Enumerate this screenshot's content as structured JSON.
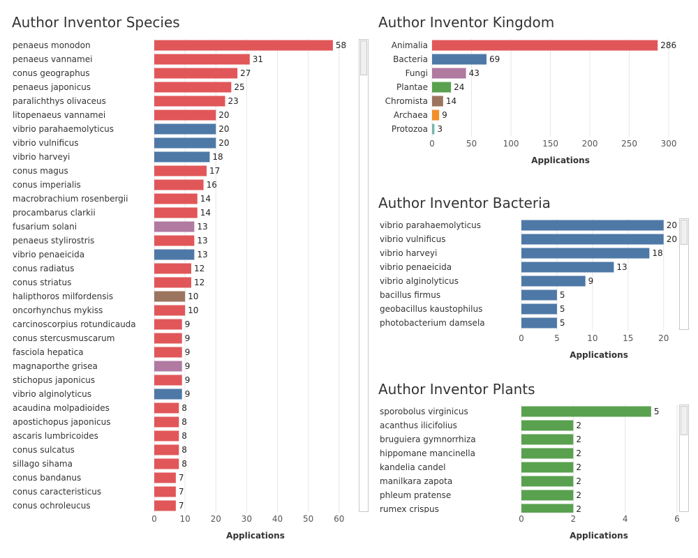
{
  "colors": {
    "animalia": "#e15759",
    "bacteria": "#4e79a7",
    "fungi": "#b07aa1",
    "plantae": "#59a14f",
    "chromista": "#9c755f",
    "archaea": "#f28e2b",
    "protozoa": "#76b7b2",
    "grid": "#e6e6e6",
    "axis_text": "#555555",
    "label_text": "#333333"
  },
  "chart_data": [
    {
      "id": "species",
      "type": "bar",
      "orientation": "horizontal",
      "title": "Author Inventor Species",
      "xlabel": "Applications",
      "xlim": [
        0,
        63
      ],
      "xticks": [
        0,
        10,
        20,
        30,
        40,
        50,
        60
      ],
      "grid": true,
      "categories": [
        "penaeus monodon",
        "penaeus vannamei",
        "conus geographus",
        "penaeus japonicus",
        "paralichthys olivaceus",
        "litopenaeus vannamei",
        "vibrio parahaemolyticus",
        "vibrio vulnificus",
        "vibrio harveyi",
        "conus magus",
        "conus imperialis",
        "macrobrachium rosenbergii",
        "procambarus clarkii",
        "fusarium solani",
        "penaeus stylirostris",
        "vibrio penaeicida",
        "conus radiatus",
        "conus striatus",
        "halipthoros milfordensis",
        "oncorhynchus mykiss",
        "carcinoscorpius rotundicauda",
        "conus stercusmuscarum",
        "fasciola hepatica",
        "magnaporthe grisea",
        "stichopus japonicus",
        "vibrio alginolyticus",
        "acaudina molpadioides",
        "apostichopus japonicus",
        "ascaris lumbricoides",
        "conus sulcatus",
        "sillago sihama",
        "conus bandanus",
        "conus caracteristicus",
        "conus ochroleucus"
      ],
      "values": [
        58,
        31,
        27,
        25,
        23,
        20,
        20,
        20,
        18,
        17,
        16,
        14,
        14,
        13,
        13,
        13,
        12,
        12,
        10,
        10,
        9,
        9,
        9,
        9,
        9,
        9,
        8,
        8,
        8,
        8,
        8,
        7,
        7,
        7
      ],
      "kingdoms": [
        "animalia",
        "animalia",
        "animalia",
        "animalia",
        "animalia",
        "animalia",
        "bacteria",
        "bacteria",
        "bacteria",
        "animalia",
        "animalia",
        "animalia",
        "animalia",
        "fungi",
        "animalia",
        "bacteria",
        "animalia",
        "animalia",
        "chromista",
        "animalia",
        "animalia",
        "animalia",
        "animalia",
        "fungi",
        "animalia",
        "bacteria",
        "animalia",
        "animalia",
        "animalia",
        "animalia",
        "animalia",
        "animalia",
        "animalia",
        "animalia"
      ]
    },
    {
      "id": "kingdom",
      "type": "bar",
      "orientation": "horizontal",
      "title": "Author Inventor Kingdom",
      "xlabel": "Applications",
      "xlim": [
        0,
        315
      ],
      "xticks": [
        0,
        50,
        100,
        150,
        200,
        250,
        300
      ],
      "grid": true,
      "categories": [
        "Animalia",
        "Bacteria",
        "Fungi",
        "Plantae",
        "Chromista",
        "Archaea",
        "Protozoa"
      ],
      "values": [
        286,
        69,
        43,
        24,
        14,
        9,
        3
      ],
      "kingdoms": [
        "animalia",
        "bacteria",
        "fungi",
        "plantae",
        "chromista",
        "archaea",
        "protozoa"
      ]
    },
    {
      "id": "bacteria",
      "type": "bar",
      "orientation": "horizontal",
      "title": "Author Inventor Bacteria",
      "xlabel": "Applications",
      "xlim": [
        0,
        21.5
      ],
      "xticks": [
        0,
        5,
        10,
        15,
        20
      ],
      "grid": true,
      "categories": [
        "vibrio parahaemolyticus",
        "vibrio vulnificus",
        "vibrio harveyi",
        "vibrio penaeicida",
        "vibrio alginolyticus",
        "bacillus firmus",
        "geobacillus kaustophilus",
        "photobacterium damsela"
      ],
      "values": [
        20,
        20,
        18,
        13,
        9,
        5,
        5,
        5
      ],
      "kingdoms": [
        "bacteria",
        "bacteria",
        "bacteria",
        "bacteria",
        "bacteria",
        "bacteria",
        "bacteria",
        "bacteria"
      ]
    },
    {
      "id": "plants",
      "type": "bar",
      "orientation": "horizontal",
      "title": "Author Inventor Plants",
      "xlabel": "Applications",
      "xlim": [
        0,
        6
      ],
      "xticks": [
        0,
        2,
        4,
        6
      ],
      "grid": true,
      "categories": [
        "sporobolus virginicus",
        "acanthus ilicifolius",
        "bruguiera gymnorrhiza",
        "hippomane mancinella",
        "kandelia candel",
        "manilkara zapota",
        "phleum pratense",
        "rumex crispus"
      ],
      "values": [
        5,
        2,
        2,
        2,
        2,
        2,
        2,
        2
      ],
      "kingdoms": [
        "plantae",
        "plantae",
        "plantae",
        "plantae",
        "plantae",
        "plantae",
        "plantae",
        "plantae"
      ]
    }
  ]
}
